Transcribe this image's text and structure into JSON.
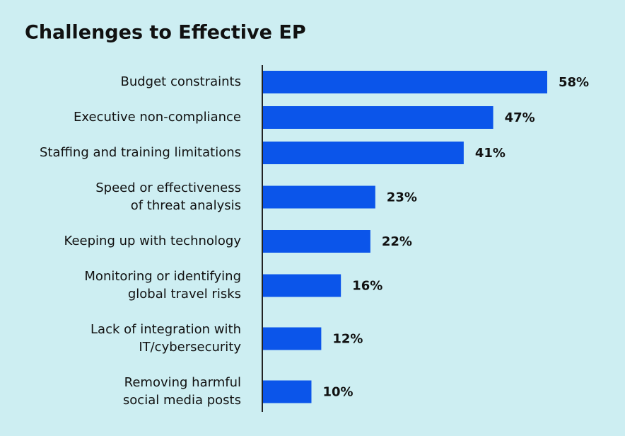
{
  "chart_data": {
    "type": "bar",
    "orientation": "horizontal",
    "title": "Challenges to Effective EP",
    "categories": [
      [
        "Budget constraints"
      ],
      [
        "Executive non-compliance"
      ],
      [
        "Staffing and training limitations"
      ],
      [
        "Speed or effectiveness",
        "of threat analysis"
      ],
      [
        "Keeping up with technology"
      ],
      [
        "Monitoring or identifying",
        "global travel risks"
      ],
      [
        "Lack of integration with",
        "IT/cybersecurity"
      ],
      [
        "Removing harmful",
        "social media posts"
      ]
    ],
    "values": [
      58,
      47,
      41,
      23,
      22,
      16,
      12,
      10
    ],
    "value_labels": [
      "58%",
      "47%",
      "41%",
      "23%",
      "22%",
      "16%",
      "12%",
      "10%"
    ],
    "color": "#0b55ea"
  }
}
